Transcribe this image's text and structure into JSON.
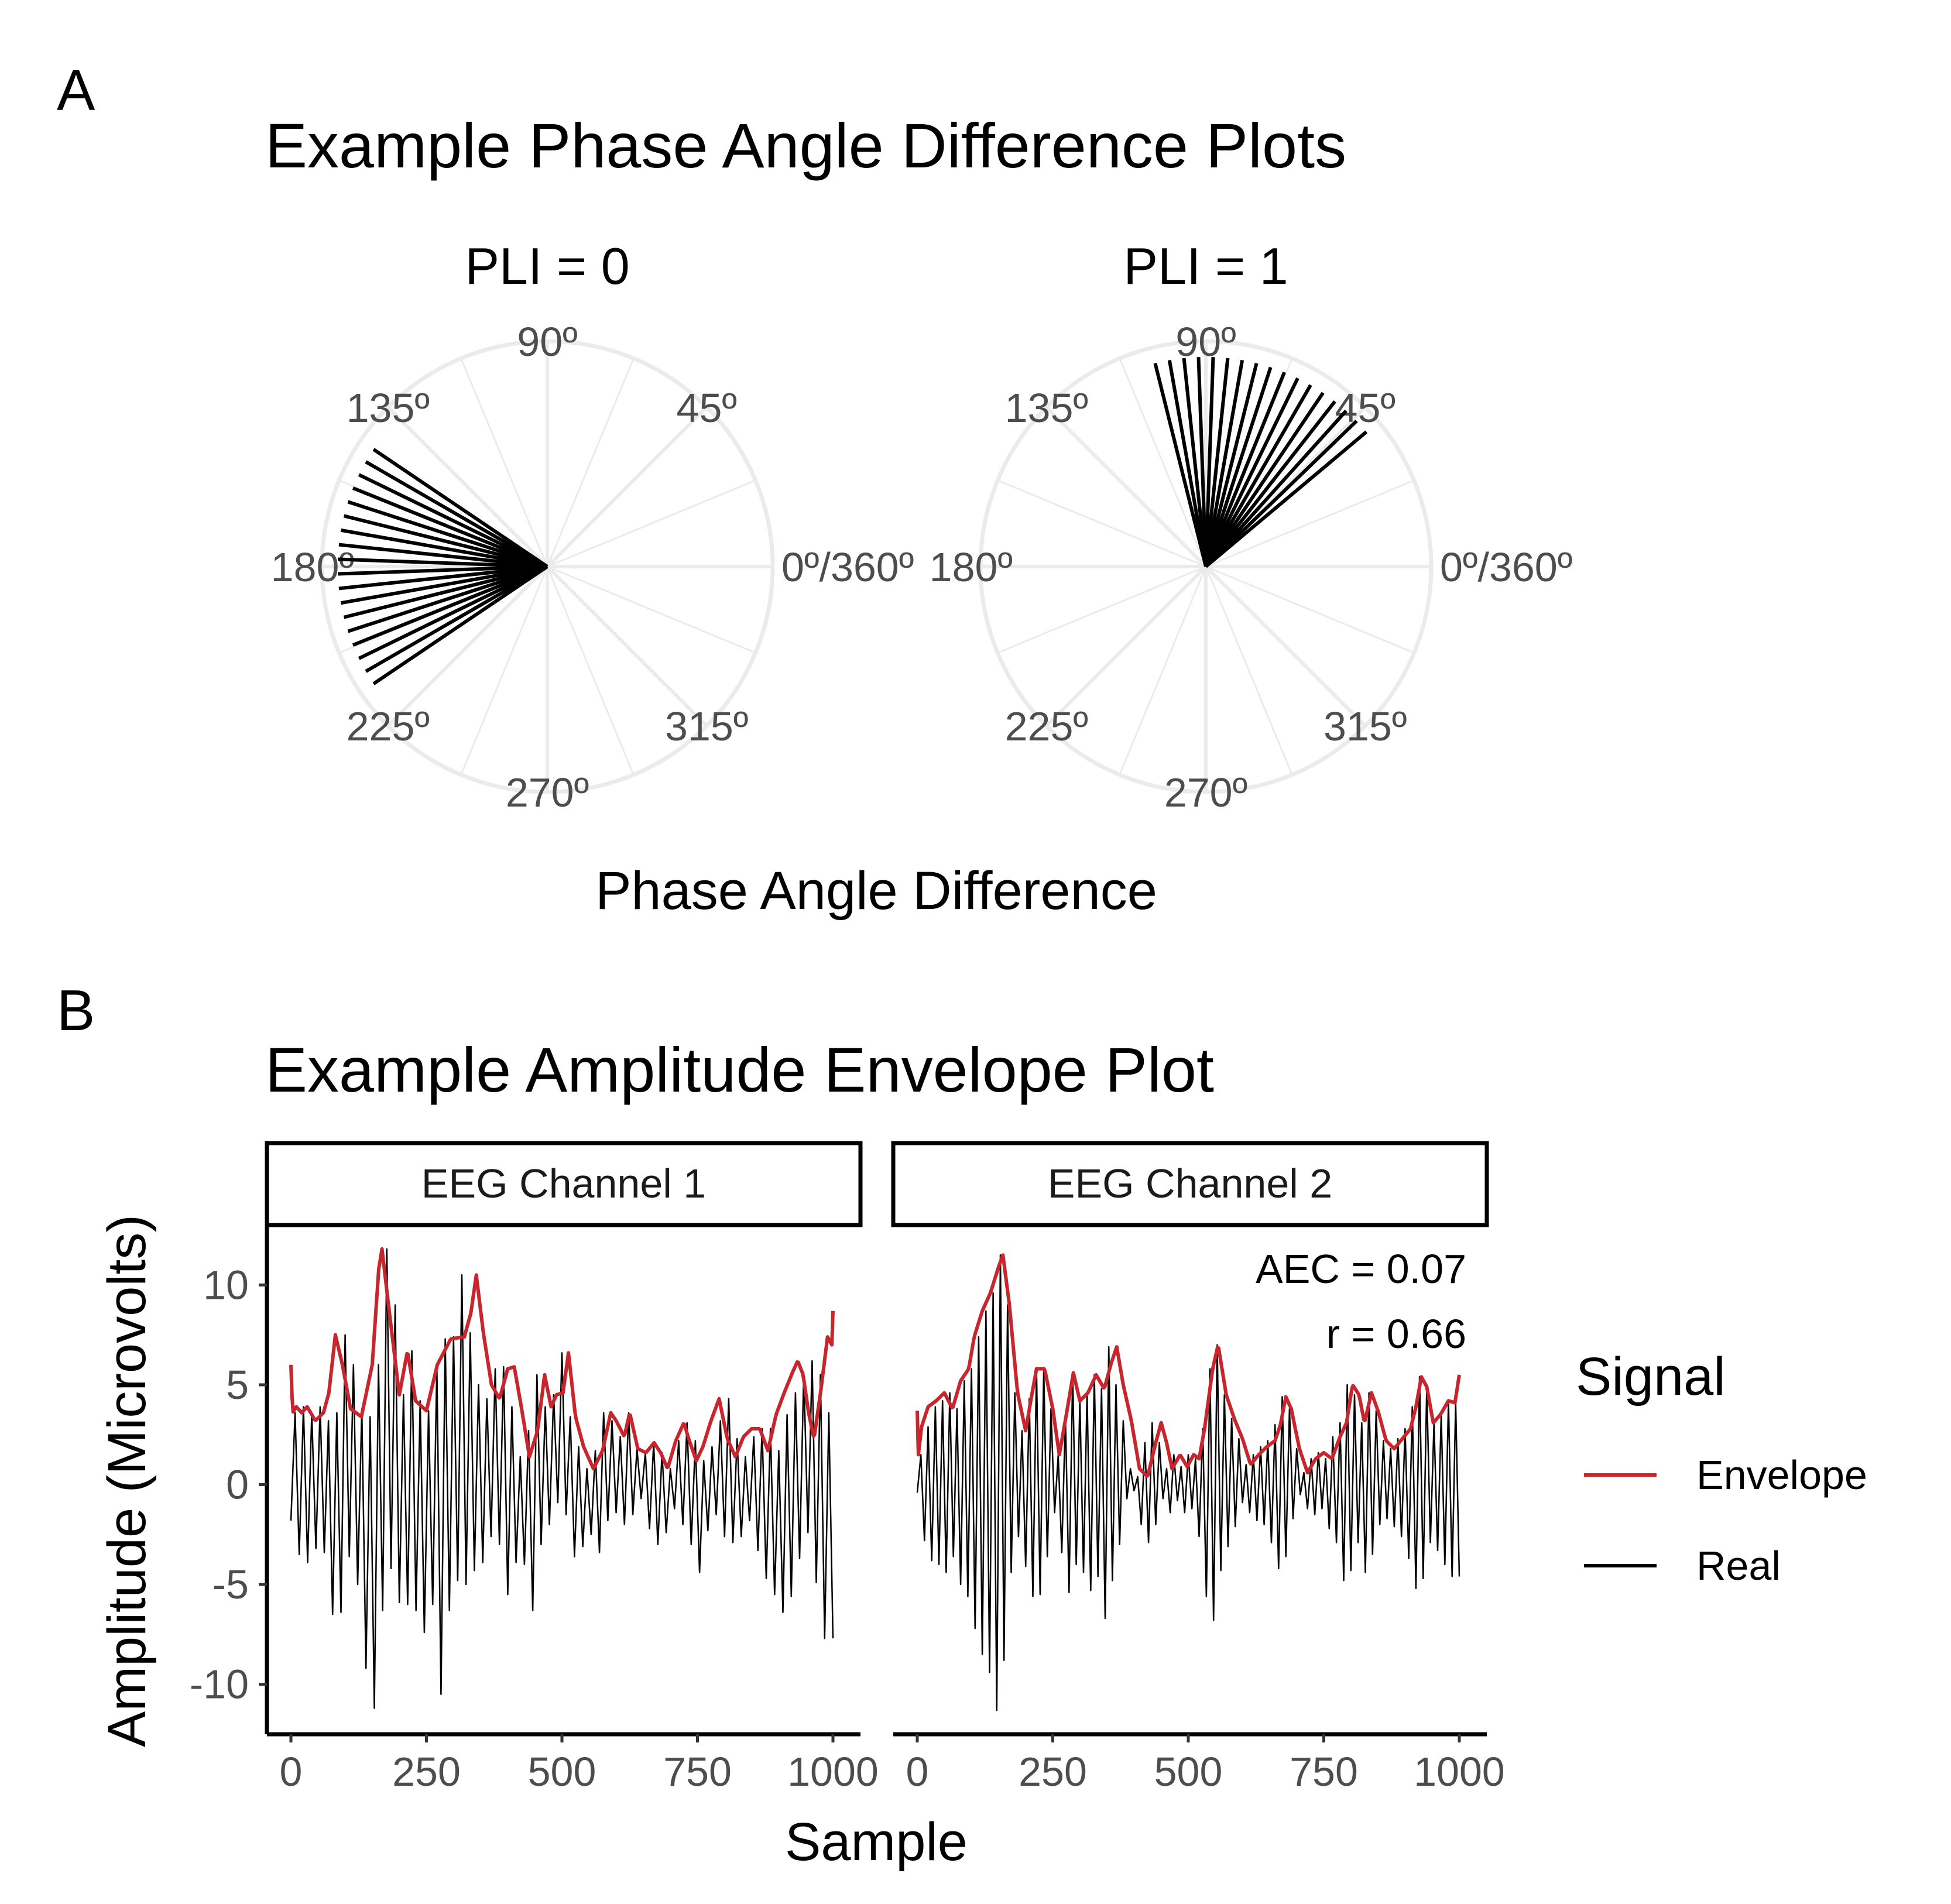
{
  "panel_a": {
    "letter": "A",
    "title": "Example Phase Angle Difference Plots",
    "axis_title": "Phase Angle Difference",
    "angle_labels": [
      "90º",
      "45º",
      "0º/360º",
      "315º",
      "270º",
      "225º",
      "180º",
      "135º"
    ],
    "gridline_angles_deg": [
      0,
      22.5,
      45,
      67.5,
      90,
      112.5,
      135,
      157.5,
      180,
      202.5,
      225,
      247.5,
      270,
      292.5,
      315,
      337.5
    ]
  },
  "panel_b": {
    "letter": "B",
    "title": "Example Amplitude Envelope Plot",
    "xlabel": "Sample",
    "ylabel": "Amplitude (Microvolts)",
    "x_ticks": [
      "0",
      "250",
      "500",
      "750",
      "1000"
    ],
    "y_ticks": [
      "10",
      "5",
      "0",
      "-5",
      "-10"
    ],
    "annotation_aec": "AEC = 0.07",
    "annotation_r": "r = 0.66",
    "legend": {
      "title": "Signal",
      "items": [
        {
          "label": "Envelope",
          "color": "#c9252c"
        },
        {
          "label": "Real",
          "color": "#000000"
        }
      ]
    }
  },
  "chart_data": [
    {
      "type": "polar-line",
      "title": "PLI = 0",
      "angles_deg": [
        146,
        150,
        154,
        158,
        162,
        166,
        170,
        174,
        178,
        182,
        186,
        190,
        194,
        198,
        202,
        206,
        210,
        214
      ],
      "radius_fraction": 0.93
    },
    {
      "type": "polar-line",
      "title": "PLI = 1",
      "angles_deg": [
        40,
        44,
        48,
        52,
        56,
        60,
        64,
        68,
        72,
        76,
        80,
        84,
        88,
        92,
        96,
        100,
        104
      ],
      "radius_fraction": 0.93
    },
    {
      "type": "line",
      "panels": [
        {
          "strip": "EEG Channel 1",
          "envelope": [
            [
              0,
              6
            ],
            [
              3,
              3.6
            ],
            [
              10,
              3.9
            ],
            [
              20,
              3.6
            ],
            [
              30,
              3.9
            ],
            [
              45,
              3.2
            ],
            [
              60,
              3.6
            ],
            [
              70,
              4.6
            ],
            [
              82,
              7.5
            ],
            [
              95,
              6
            ],
            [
              110,
              3.8
            ],
            [
              130,
              3.4
            ],
            [
              150,
              6
            ],
            [
              162,
              10.8
            ],
            [
              168,
              11.8
            ],
            [
              180,
              9
            ],
            [
              200,
              4.5
            ],
            [
              215,
              6.7
            ],
            [
              230,
              4.2
            ],
            [
              250,
              3.7
            ],
            [
              270,
              6
            ],
            [
              295,
              7.3
            ],
            [
              320,
              7.4
            ],
            [
              332,
              8.6
            ],
            [
              342,
              10.5
            ],
            [
              355,
              7.6
            ],
            [
              370,
              5
            ],
            [
              385,
              4.3
            ],
            [
              400,
              5.8
            ],
            [
              412,
              5.9
            ],
            [
              425,
              3.9
            ],
            [
              440,
              1.4
            ],
            [
              455,
              2.7
            ],
            [
              468,
              5.5
            ],
            [
              480,
              3.9
            ],
            [
              490,
              4.5
            ],
            [
              502,
              4.6
            ],
            [
              512,
              6.6
            ],
            [
              525,
              3.4
            ],
            [
              540,
              1.9
            ],
            [
              558,
              0.8
            ],
            [
              575,
              1.7
            ],
            [
              590,
              3.6
            ],
            [
              600,
              3.2
            ],
            [
              615,
              2.4
            ],
            [
              625,
              3.6
            ],
            [
              640,
              1.8
            ],
            [
              655,
              1.6
            ],
            [
              670,
              2.1
            ],
            [
              682,
              1.6
            ],
            [
              695,
              0.8
            ],
            [
              710,
              2.2
            ],
            [
              725,
              3.1
            ],
            [
              735,
              2.2
            ],
            [
              748,
              1.2
            ],
            [
              760,
              1.9
            ],
            [
              775,
              3.2
            ],
            [
              790,
              4.3
            ],
            [
              805,
              2.3
            ],
            [
              820,
              1.4
            ],
            [
              835,
              2.4
            ],
            [
              850,
              2.8
            ],
            [
              865,
              2.8
            ],
            [
              880,
              1.7
            ],
            [
              895,
              3.5
            ],
            [
              910,
              4.6
            ],
            [
              925,
              5.6
            ],
            [
              935,
              6.2
            ],
            [
              945,
              5.5
            ],
            [
              955,
              3.6
            ],
            [
              965,
              2.3
            ],
            [
              978,
              4.8
            ],
            [
              990,
              7.4
            ],
            [
              998,
              7
            ],
            [
              1000,
              8.7
            ]
          ],
          "real_peaks": [
            3.6,
            3.9,
            3.6,
            3.9,
            3.2,
            3.6,
            7.5,
            6,
            3.8,
            3.4,
            6,
            11.8,
            9,
            4.5,
            6.7,
            4.2,
            3.7,
            6,
            7.3,
            7.4,
            10.5,
            7.6,
            5,
            4.3,
            5.8,
            5.9,
            3.9,
            1.4,
            2.7,
            5.5,
            3.9,
            4.5,
            6.6,
            3.4,
            1.9,
            0.8,
            1.7,
            3.6,
            3.2,
            2.4,
            3.6,
            1.8,
            1.6,
            2.1,
            1.6,
            0.8,
            2.2,
            3.1,
            2.2,
            1.2,
            1.9,
            3.2,
            4.3,
            2.3,
            1.4,
            2.4,
            2.8,
            2.8,
            1.7,
            3.5,
            4.6,
            5.6,
            6.2,
            5.5,
            3.6,
            2.3,
            4.8,
            7.4,
            8.7
          ],
          "real_troughs": [
            -1.8,
            -3.5,
            -3.9,
            -3.2,
            -3.4,
            -6.5,
            -6.4,
            -3.6,
            -5,
            -9.2,
            -11.2,
            -6.3,
            -4.2,
            -5.9,
            -6,
            -6.3,
            -7.4,
            -6,
            -10.5,
            -6.3,
            -4.8,
            -5,
            -4.3,
            -3.9,
            -2.6,
            -3,
            -5.5,
            -3.9,
            -4,
            -6.3,
            -3,
            -2,
            -0.9,
            -1.5,
            -3.6,
            -3.1,
            -2.5,
            -3.4,
            -1.8,
            -1.4,
            -2,
            -1.5,
            -0.7,
            -2.2,
            -3,
            -2.4,
            -1.2,
            -2,
            -3,
            -4.4,
            -2.3,
            -1.5,
            -2.6,
            -2.9,
            -2.6,
            -1.8,
            -3.3,
            -4.7,
            -5.5,
            -6.4,
            -5.6,
            -3.7,
            -2.4,
            -4.9,
            -7.7
          ]
        },
        {
          "strip": "EEG Channel 2",
          "envelope": [
            [
              0,
              3.7
            ],
            [
              2,
              1.5
            ],
            [
              8,
              2.9
            ],
            [
              20,
              3.9
            ],
            [
              35,
              4.2
            ],
            [
              50,
              4.6
            ],
            [
              65,
              3.8
            ],
            [
              80,
              5.2
            ],
            [
              95,
              5.8
            ],
            [
              105,
              7.4
            ],
            [
              120,
              8.7
            ],
            [
              135,
              9.6
            ],
            [
              150,
              10.9
            ],
            [
              158,
              11.5
            ],
            [
              170,
              9
            ],
            [
              185,
              4.6
            ],
            [
              200,
              2.7
            ],
            [
              210,
              4.3
            ],
            [
              220,
              5.8
            ],
            [
              235,
              5.8
            ],
            [
              250,
              3.8
            ],
            [
              262,
              1.5
            ],
            [
              275,
              3.5
            ],
            [
              288,
              5.6
            ],
            [
              300,
              4.2
            ],
            [
              315,
              4.6
            ],
            [
              330,
              5.5
            ],
            [
              345,
              4.8
            ],
            [
              358,
              6.1
            ],
            [
              368,
              6.9
            ],
            [
              380,
              5
            ],
            [
              395,
              3.2
            ],
            [
              410,
              0.8
            ],
            [
              425,
              0.4
            ],
            [
              440,
              2.1
            ],
            [
              450,
              3.1
            ],
            [
              460,
              2.1
            ],
            [
              470,
              0.8
            ],
            [
              485,
              1.5
            ],
            [
              498,
              0.9
            ],
            [
              510,
              1.5
            ],
            [
              520,
              1.3
            ],
            [
              530,
              2.8
            ],
            [
              545,
              5.8
            ],
            [
              555,
              7
            ],
            [
              570,
              4.5
            ],
            [
              585,
              3.3
            ],
            [
              600,
              2.3
            ],
            [
              615,
              1
            ],
            [
              630,
              1.5
            ],
            [
              645,
              1.9
            ],
            [
              660,
              2.2
            ],
            [
              670,
              3
            ],
            [
              680,
              4.4
            ],
            [
              690,
              3.8
            ],
            [
              705,
              1.8
            ],
            [
              720,
              0.6
            ],
            [
              735,
              1.3
            ],
            [
              750,
              1.6
            ],
            [
              765,
              1.3
            ],
            [
              780,
              2.4
            ],
            [
              792,
              3.1
            ],
            [
              803,
              5
            ],
            [
              815,
              4.5
            ],
            [
              825,
              3.1
            ],
            [
              838,
              4.6
            ],
            [
              850,
              3.7
            ],
            [
              865,
              2.2
            ],
            [
              880,
              1.8
            ],
            [
              895,
              2.3
            ],
            [
              910,
              2.8
            ],
            [
              920,
              3.9
            ],
            [
              930,
              5.4
            ],
            [
              940,
              4.9
            ],
            [
              952,
              3.1
            ],
            [
              965,
              3.5
            ],
            [
              980,
              4.2
            ],
            [
              992,
              4.1
            ],
            [
              1000,
              5.5
            ]
          ],
          "real_peaks": [
            1.5,
            2.9,
            3.9,
            4.2,
            4.6,
            3.8,
            5.2,
            5.8,
            7.4,
            8.7,
            9.6,
            11.5,
            9,
            4.6,
            2.7,
            4.3,
            5.8,
            5.8,
            3.8,
            1.5,
            3.5,
            5.6,
            4.2,
            4.6,
            5.5,
            4.8,
            6.9,
            5,
            3.2,
            0.8,
            0.4,
            2.1,
            3.1,
            2.1,
            0.8,
            1.5,
            0.9,
            1.5,
            1.3,
            2.8,
            5.8,
            7,
            4.5,
            3.3,
            2.3,
            1,
            1.5,
            1.9,
            2.2,
            3,
            4.4,
            3.8,
            1.8,
            0.6,
            1.3,
            1.6,
            1.3,
            2.4,
            3.1,
            5,
            4.5,
            3.1,
            4.6,
            3.7,
            2.2,
            1.8,
            2.3,
            2.8,
            3.9,
            5.4,
            4.9,
            3.1,
            3.5,
            4.2,
            4.1
          ],
          "real_troughs": [
            -0.4,
            -2.8,
            -3.8,
            -4,
            -4.4,
            -3.6,
            -5,
            -5.6,
            -7.2,
            -8.5,
            -9.4,
            -11.3,
            -8.8,
            -4.4,
            -2.6,
            -4.1,
            -5.6,
            -5.5,
            -3.6,
            -1.4,
            -3.4,
            -5.4,
            -4,
            -4.4,
            -5.3,
            -4.6,
            -6.7,
            -4.8,
            -3,
            -0.7,
            -0.3,
            -2,
            -2.9,
            -2,
            -0.7,
            -1.4,
            -0.8,
            -1.4,
            -1.2,
            -2.6,
            -5.6,
            -6.8,
            -4.3,
            -3.1,
            -2.1,
            -0.9,
            -1.4,
            -1.8,
            -2,
            -2.9,
            -4.2,
            -3.6,
            -1.7,
            -0.5,
            -1.2,
            -1.5,
            -1.2,
            -2.2,
            -2.9,
            -4.8,
            -4.3,
            -2.9,
            -4.4,
            -3.5,
            -2,
            -1.7,
            -2.1,
            -2.6,
            -3.7,
            -5.2,
            -4.7,
            -2.9,
            -3.3,
            -4,
            -4.6
          ]
        }
      ],
      "xlim": [
        0,
        1000
      ],
      "ylim": [
        -12.5,
        13
      ],
      "xlabel": "Sample",
      "ylabel": "Amplitude (Microvolts)",
      "series": [
        {
          "name": "Envelope",
          "color": "#c9252c"
        },
        {
          "name": "Real",
          "color": "#000000"
        }
      ]
    }
  ]
}
